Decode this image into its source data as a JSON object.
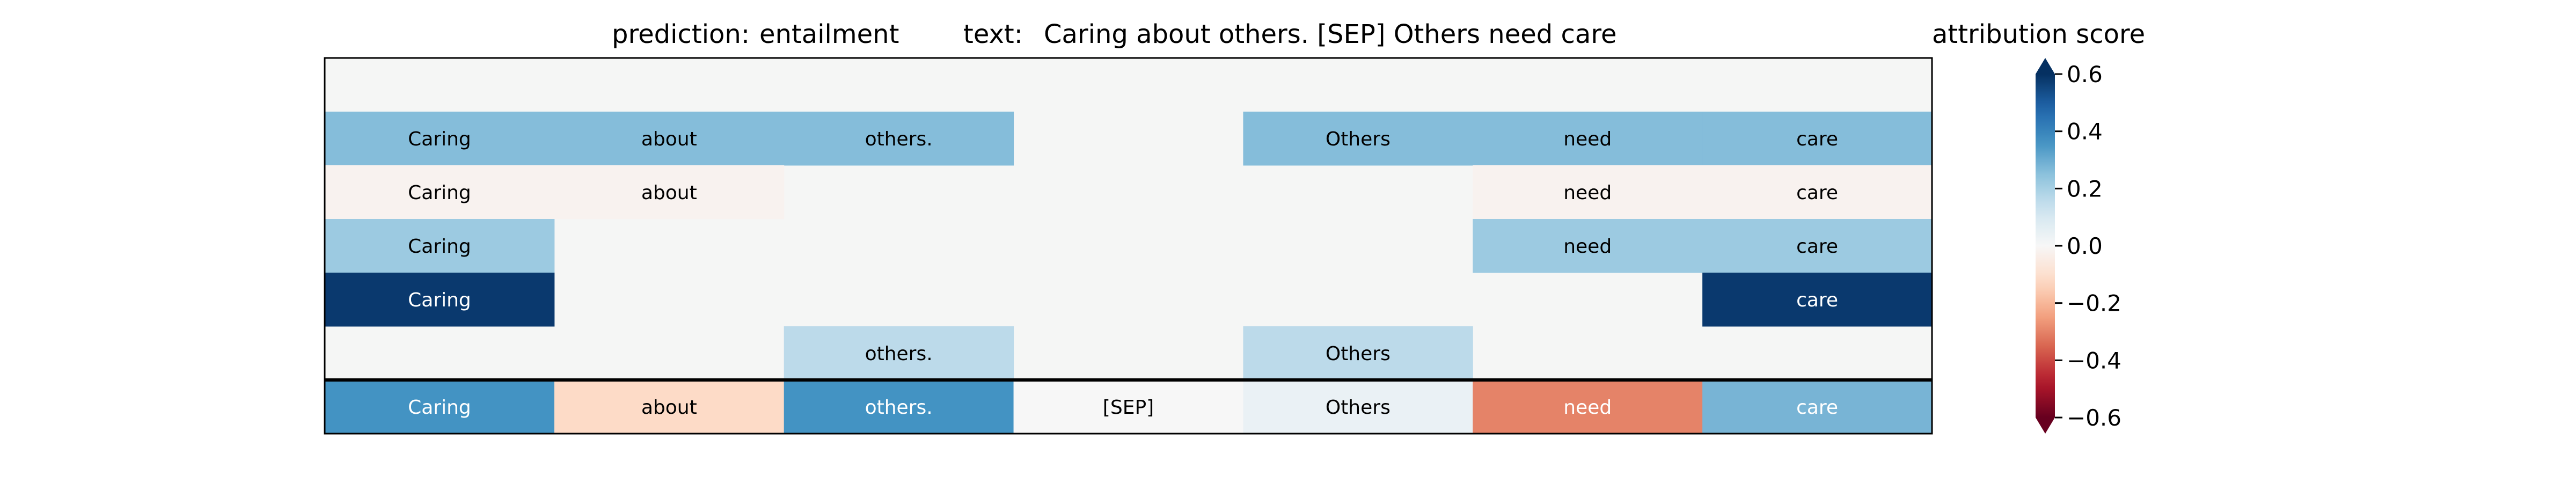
{
  "header": {
    "prediction_label": "prediction:",
    "prediction_value": "entailment",
    "text_label": "text:",
    "text_value": "Caring about others. [SEP] Others need care"
  },
  "colorbar": {
    "title": "attribution score",
    "ticks": [
      0.6,
      0.4,
      0.2,
      0.0,
      -0.2,
      -0.4,
      -0.6
    ],
    "tick_labels": [
      "0.6",
      "0.4",
      "0.2",
      "0.0",
      "−0.2",
      "−0.4",
      "−0.6"
    ],
    "vmin": -0.6,
    "vmax": 0.6
  },
  "colors": {
    "background_cell": "#f5f6f5",
    "colormap": "RdBu"
  },
  "chart_data": {
    "type": "heatmap",
    "title": "prediction:  entailment     text:  Caring about others. [SEP] Others need care",
    "tokens": [
      "Caring",
      "about",
      "others.",
      "[SEP]",
      "Others",
      "need",
      "care"
    ],
    "rows": [
      {
        "values": [
          null,
          null,
          null,
          null,
          null,
          null,
          null
        ]
      },
      {
        "values": [
          0.26,
          0.26,
          0.26,
          null,
          0.26,
          0.26,
          0.26
        ]
      },
      {
        "values": [
          -0.02,
          -0.02,
          null,
          null,
          null,
          -0.02,
          -0.02
        ]
      },
      {
        "values": [
          0.22,
          null,
          null,
          null,
          null,
          0.22,
          0.22
        ]
      },
      {
        "values": [
          0.58,
          null,
          null,
          null,
          null,
          null,
          0.58
        ]
      },
      {
        "values": [
          null,
          null,
          0.16,
          null,
          0.16,
          null,
          null
        ]
      }
    ],
    "summary_row": {
      "values": [
        0.36,
        -0.12,
        0.36,
        0.0,
        0.04,
        -0.3,
        0.28
      ]
    },
    "colorbar_range": [
      -0.6,
      0.6
    ]
  }
}
